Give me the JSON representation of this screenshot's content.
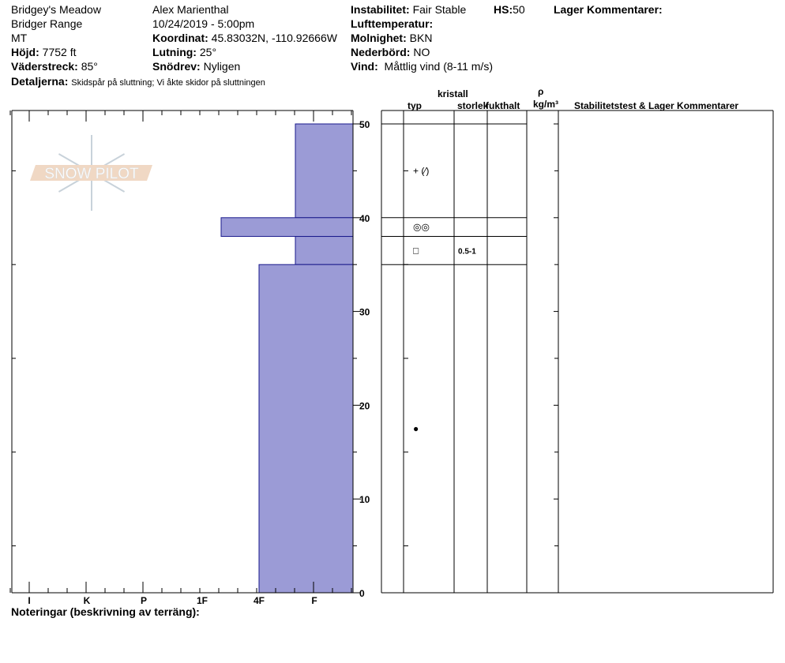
{
  "header": {
    "location": "Bridgey's Meadow",
    "range": "Bridger Range",
    "state": "MT",
    "elevation_label": "Höjd:",
    "elevation": "7752 ft",
    "aspect_label": "Väderstreck:",
    "aspect": "85°",
    "details_label": "Detaljerna:",
    "details": "Skidspår på sluttning;  Vi åkte skidor på sluttningen",
    "observer": "Alex Marienthal",
    "datetime": "10/24/2019 - 5:00pm",
    "coord_label": "Koordinat:",
    "coord": "45.83032N, -110.92666W",
    "slope_label": "Lutning:",
    "slope": "25°",
    "drift_label": "Snödrev:",
    "drift": "Nyligen",
    "instability_label": "Instabilitet:",
    "instability": "Fair Stable",
    "hs_label": "HS:",
    "hs": "50",
    "layer_comments_label": "Lager Kommentarer:",
    "air_temp_label": "Lufttemperatur:",
    "sky_label": "Molnighet:",
    "sky": "BKN",
    "precip_label": "Nederbörd:",
    "precip": "NO",
    "wind_label": "Vind:",
    "wind": "Måttlig vind (8-11 m/s)"
  },
  "table": {
    "crystal": "kristall",
    "type": "typ",
    "size": "storlek",
    "moisture": "fukthalt",
    "rho": "ρ",
    "density_unit": "kg/m³",
    "comments": "Stabilitetstest & Lager Kommentarer"
  },
  "notes_label": "Noteringar (beskrivning av terräng):",
  "logo_text": "SNOW PILOT",
  "colors": {
    "layer_fill": "#9b9bd6",
    "logo_band": "#f0d8c4",
    "logo_flake": "#c8d2da"
  },
  "chart_data": {
    "type": "bar",
    "orientation": "horizontal",
    "y_axis": {
      "label": "",
      "range": [
        0,
        50
      ],
      "ticks": [
        0,
        10,
        20,
        30,
        40,
        50
      ]
    },
    "x_axis": {
      "ticks": [
        "I",
        "K",
        "P",
        "1F",
        "4F",
        "F"
      ]
    },
    "layers": [
      {
        "top": 50,
        "bottom": 40,
        "hardness": "F+",
        "grain": "+ (⁄)",
        "size": ""
      },
      {
        "top": 40,
        "bottom": 38,
        "hardness": "1F-",
        "grain": "◎◎",
        "size": ""
      },
      {
        "top": 38,
        "bottom": 35,
        "hardness": "F+",
        "grain": "□",
        "size": "0.5-1"
      },
      {
        "top": 35,
        "bottom": 0,
        "hardness": "4F",
        "grain": "●",
        "size": ""
      }
    ]
  }
}
